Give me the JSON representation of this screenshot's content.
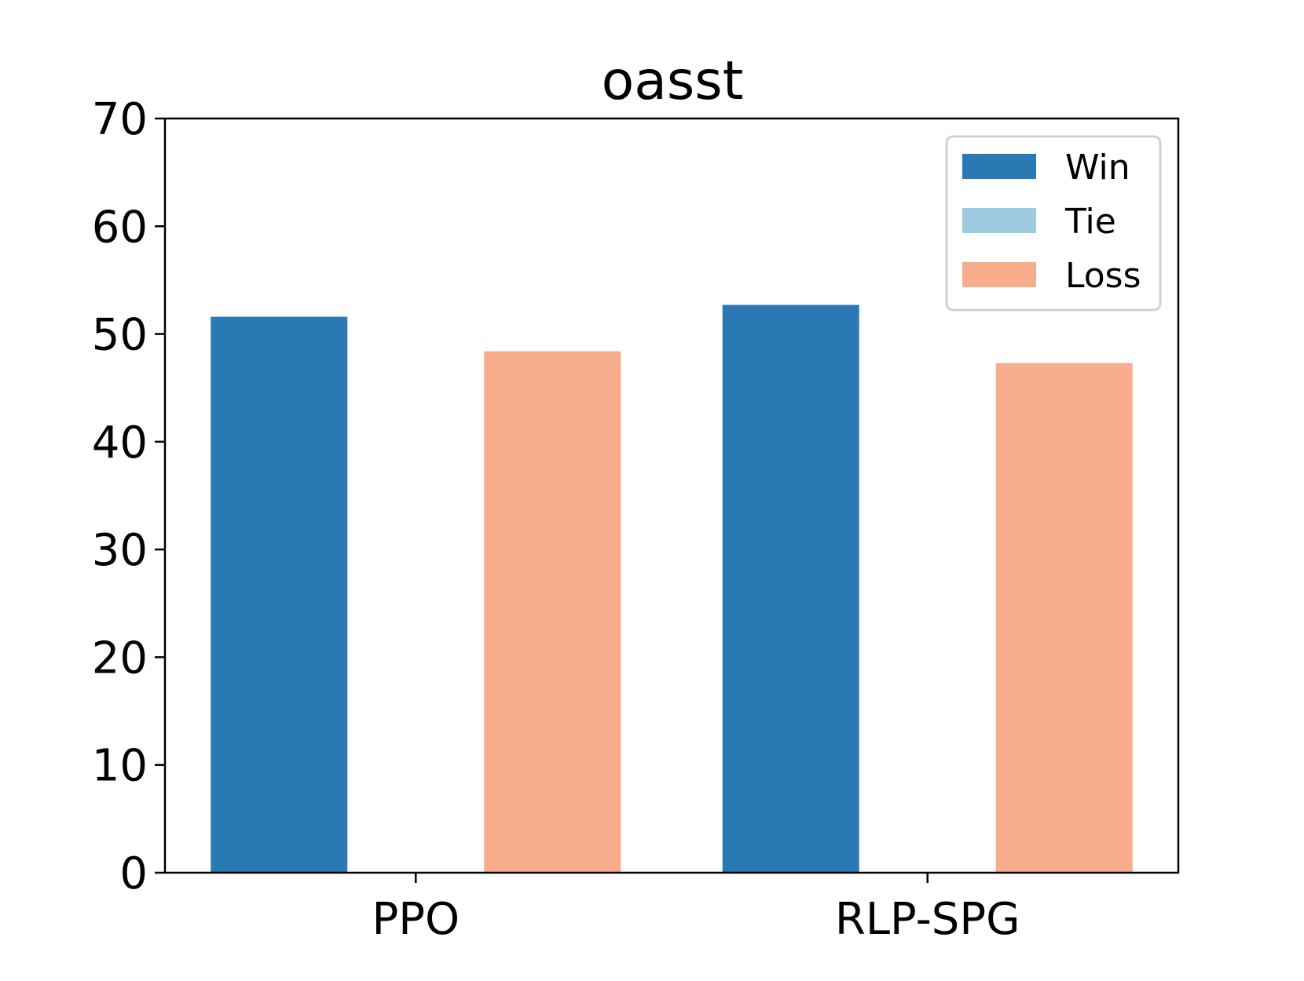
{
  "chart_data": {
    "type": "bar",
    "title": "oasst",
    "xlabel": "",
    "ylabel": "",
    "categories": [
      "PPO",
      "RLP-SPG"
    ],
    "series": [
      {
        "name": "Win",
        "color": "#2a78b4",
        "values": [
          51.6,
          52.7
        ]
      },
      {
        "name": "Tie",
        "color": "#9ecae1",
        "values": [
          0.0,
          0.0
        ]
      },
      {
        "name": "Loss",
        "color": "#f7ac8c",
        "values": [
          48.4,
          47.3
        ]
      }
    ],
    "ylim": [
      0,
      70
    ],
    "yticks": [
      "0",
      "10",
      "20",
      "30",
      "40",
      "50",
      "60",
      "70"
    ],
    "grid": false,
    "legend_position": "top-right"
  }
}
